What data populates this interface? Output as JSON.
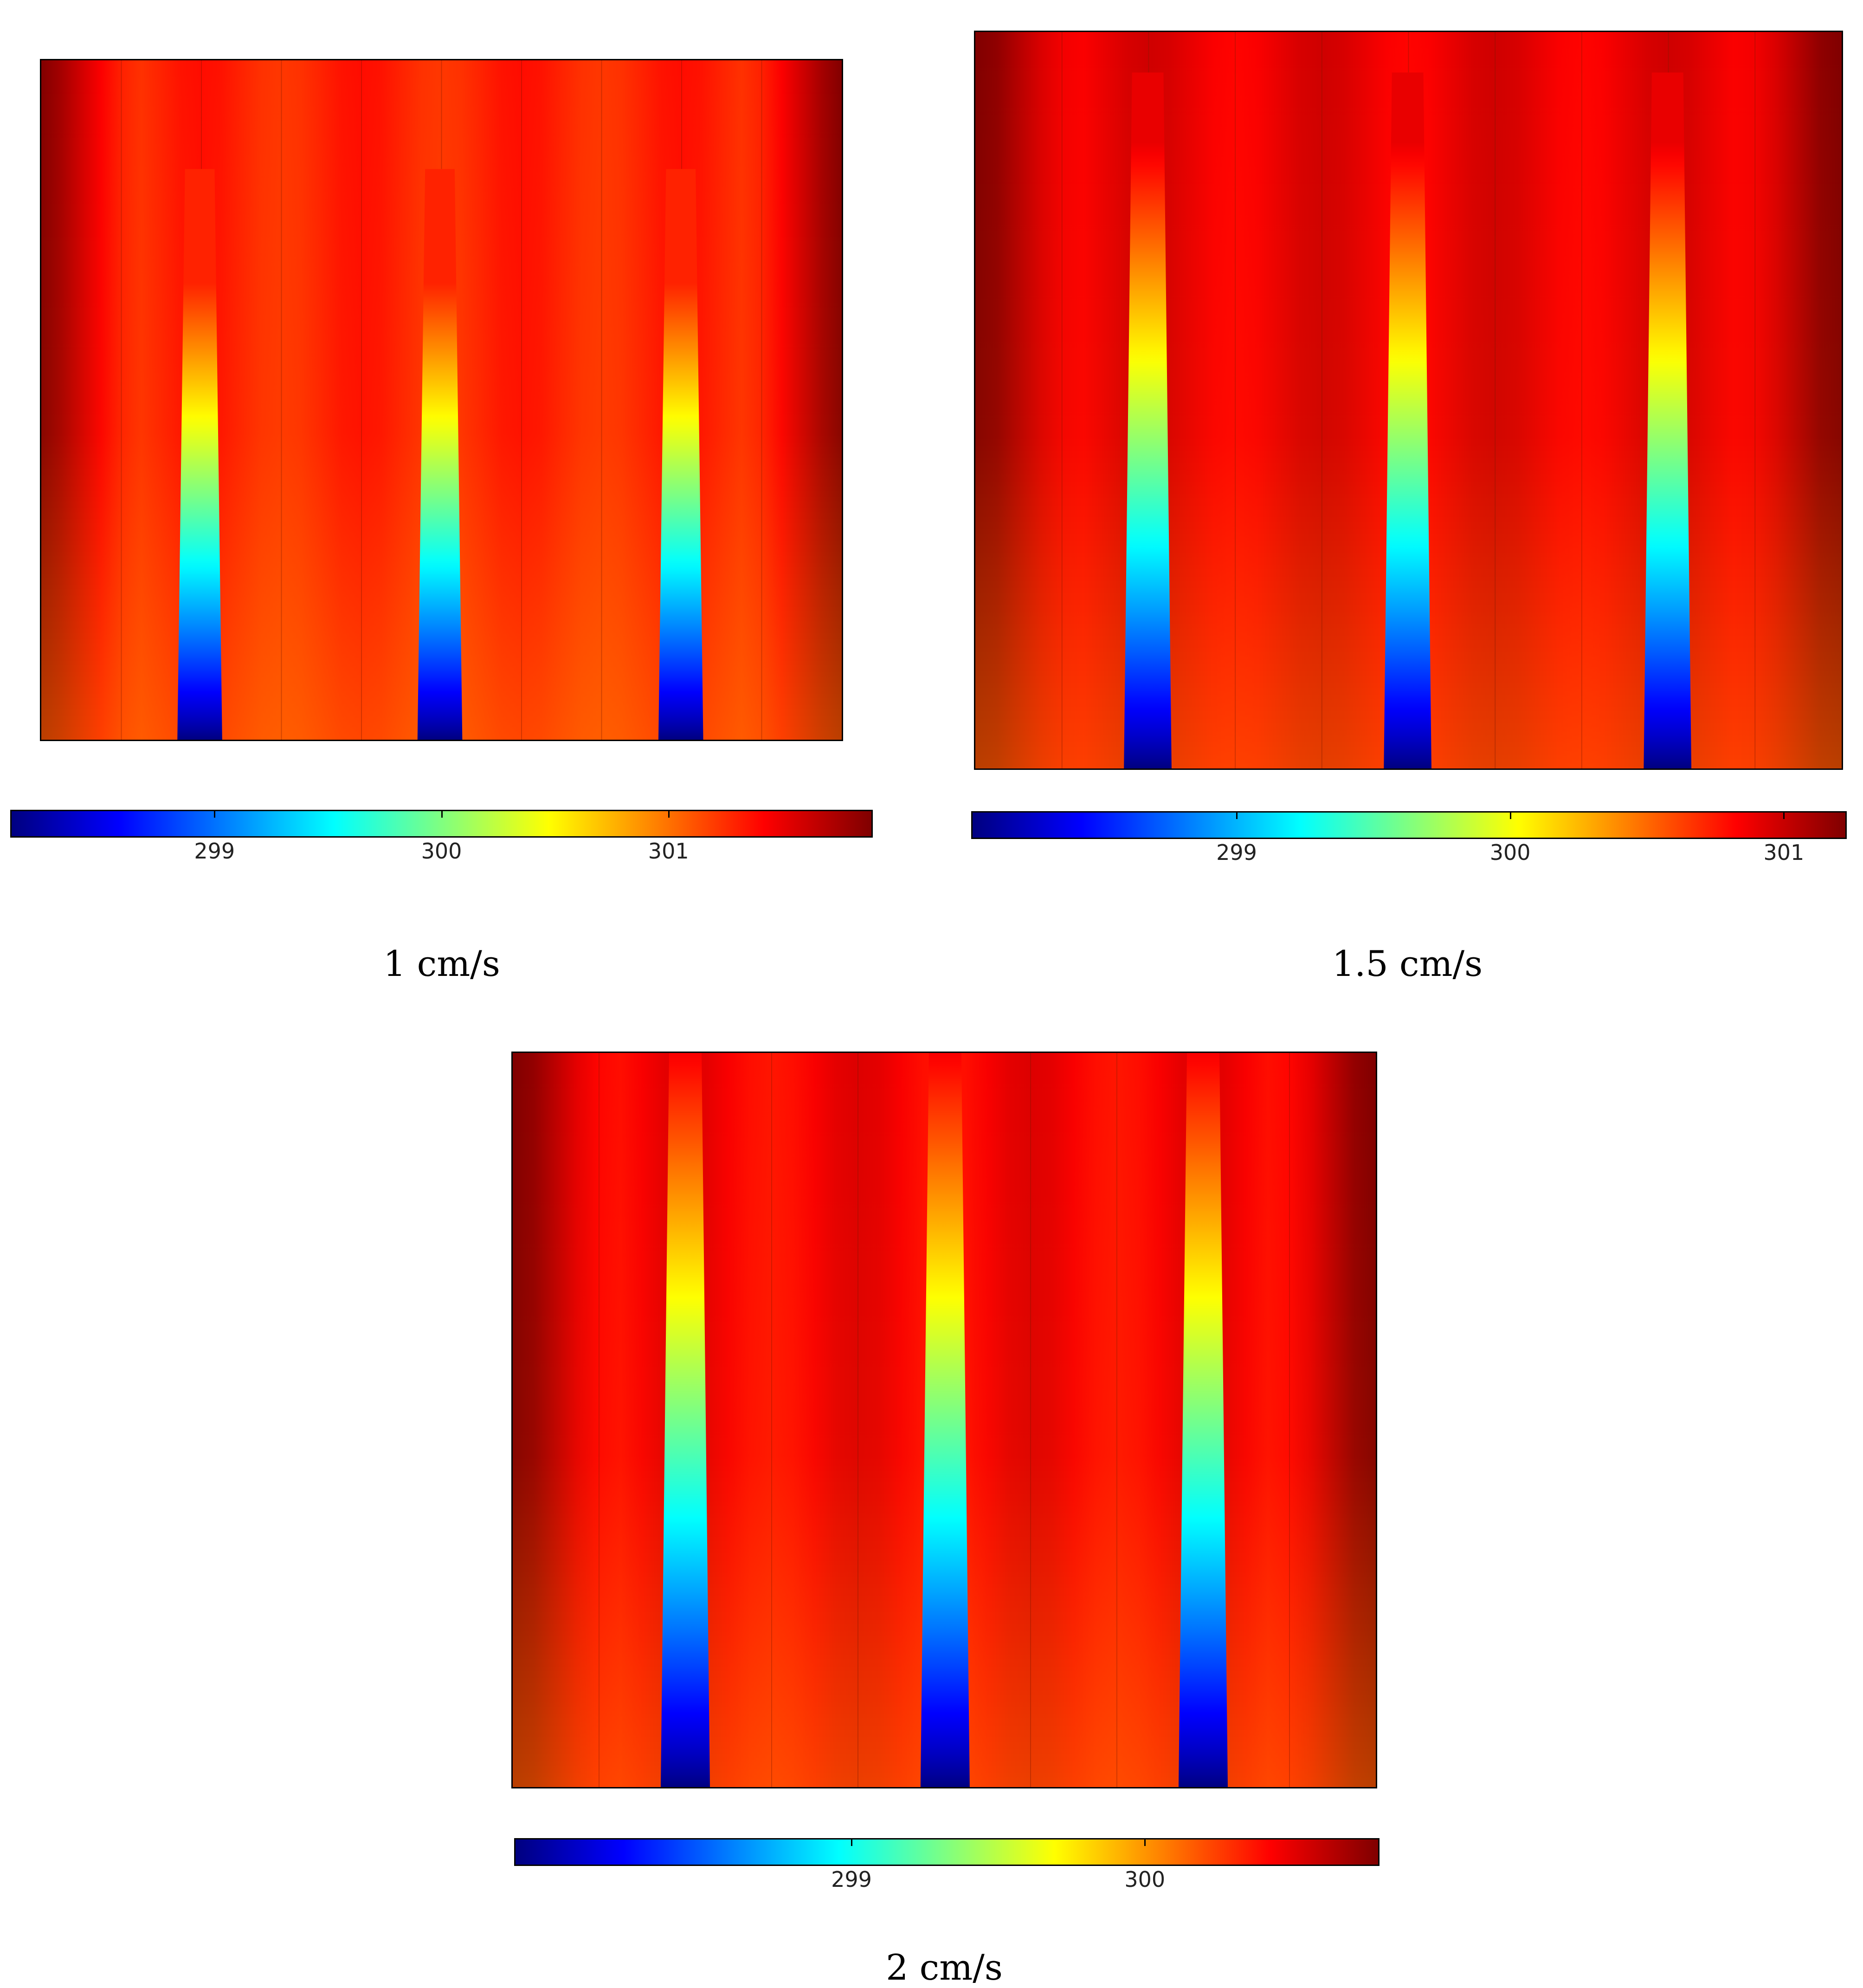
{
  "chart_data": [
    {
      "type": "heatmap",
      "caption": "1 cm/s",
      "colormap": "jet",
      "colorbar_ticks": [
        "299",
        "300",
        "301"
      ],
      "colorbar_tick_values": [
        299,
        300,
        301
      ],
      "colorbar_range": [
        298.1,
        301.9
      ],
      "plume_count": 3,
      "plume_min_value": 298.1,
      "background_value": 301.3,
      "plume_length_fraction": 0.8
    },
    {
      "type": "heatmap",
      "caption": "1.5 cm/s",
      "colormap": "jet",
      "colorbar_ticks": [
        "299",
        "300",
        "301"
      ],
      "colorbar_tick_values": [
        299,
        300,
        301
      ],
      "colorbar_range": [
        298.03,
        301.23
      ],
      "plume_count": 3,
      "plume_min_value": 298.03,
      "background_value": 300.9,
      "plume_length_fraction": 0.9
    },
    {
      "type": "heatmap",
      "caption": "2 cm/s",
      "colormap": "jet",
      "colorbar_ticks": [
        "299",
        "300"
      ],
      "colorbar_tick_values": [
        299,
        300
      ],
      "colorbar_range": [
        297.85,
        300.8
      ],
      "plume_count": 3,
      "plume_min_value": 297.85,
      "background_value": 300.45,
      "plume_length_fraction": 1.0
    }
  ]
}
